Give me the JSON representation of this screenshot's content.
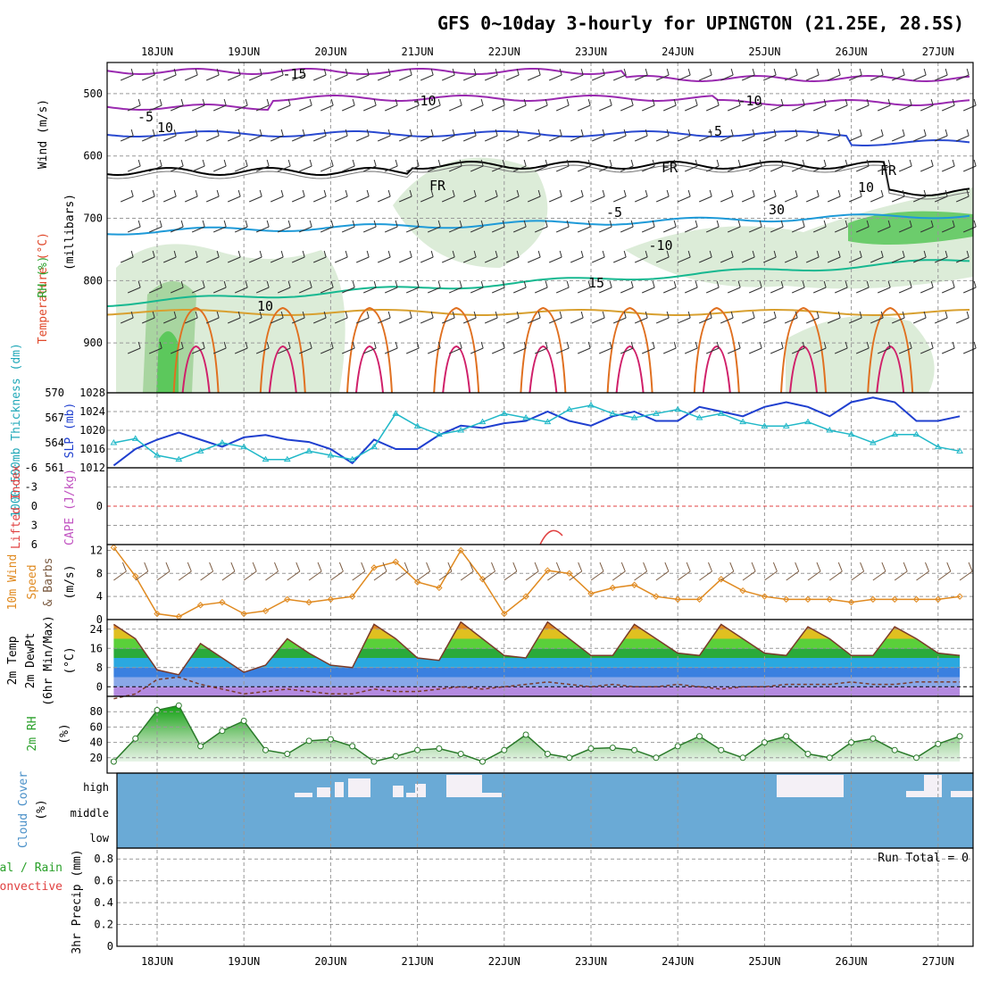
{
  "title": "GFS 0~10day 3-hourly for UPINGTON (21.25E, 28.5S)",
  "x_dates": [
    "18JUN",
    "19JUN",
    "20JUN",
    "21JUN",
    "22JUN",
    "23JUN",
    "24JUN",
    "25JUN",
    "26JUN",
    "27JUN"
  ],
  "colors": {
    "frame": "#000000",
    "grid": "#999999",
    "slp": "#1f3fcf",
    "thickness": "#20b8c8",
    "wind10m": "#e08a20",
    "rh_line": "#2a7a2a",
    "cloud_bg": "#6aaad6",
    "freezing": "#000000"
  },
  "panels": {
    "upper": {
      "labels": {
        "wind": "Wind (m/s)",
        "temp": "Temperature (°C)",
        "rh": "RH (%)",
        "axis": "(millibars)"
      },
      "pressure_ticks": [
        "500",
        "600",
        "700",
        "800",
        "900"
      ],
      "contour_labels": [
        "-15",
        "-10",
        "-10",
        "-5",
        "-5",
        "FR",
        "FR",
        "FR",
        "-5",
        "-10",
        "15",
        "10",
        "10",
        "30",
        "10"
      ]
    },
    "thickness": {
      "labels": {
        "thick": "1000-500mb Thickness (dm)",
        "slp": "SLP (mb)"
      },
      "left_ticks": [
        "570",
        "567",
        "564",
        "561"
      ],
      "right_ticks": [
        "1028",
        "1024",
        "1020",
        "1016",
        "1012"
      ]
    },
    "cape": {
      "labels": {
        "li": "Lifted Index",
        "cape": "CAPE (J/kg)"
      },
      "ticks": [
        "-6",
        "-3",
        "0",
        "3",
        "6"
      ]
    },
    "wind10m": {
      "labels": {
        "title": "10m Wind",
        "speed": "Speed",
        "barbs": "& Barbs",
        "unit": "(m/s)"
      },
      "ticks": [
        "12",
        "8",
        "4",
        "0"
      ]
    },
    "temp2m": {
      "labels": {
        "line1": "2m Temp",
        "line2": "2m DewPt",
        "line3": "(6hr Min/Max)",
        "unit": "(°C)"
      },
      "ticks": [
        "24",
        "16",
        "8",
        "0"
      ]
    },
    "rh2m": {
      "labels": {
        "title": "2m RH",
        "unit": "(%)"
      },
      "ticks": [
        "80",
        "60",
        "40",
        "20"
      ]
    },
    "cloud": {
      "labels": {
        "title": "Cloud Cover",
        "unit": "(%)"
      },
      "levels": [
        "high",
        "middle",
        "low"
      ]
    },
    "precip": {
      "labels": {
        "total": "Total / Rain",
        "conv": "Convective",
        "axis": "3hr Precip (mm)"
      },
      "ticks": [
        "0.8",
        "0.6",
        "0.4",
        "0.2",
        "0"
      ],
      "run_total": "Run Total = 0"
    }
  },
  "chart_data": [
    {
      "type": "line",
      "title": "1000-500mb Thickness (dm) / SLP (mb)",
      "x": [
        "17.5",
        "17.75",
        "18.0",
        "18.25",
        "18.5",
        "18.75",
        "19.0",
        "19.25",
        "19.5",
        "19.75",
        "20.0",
        "20.25",
        "20.5",
        "20.75",
        "21.0",
        "21.25",
        "21.5",
        "21.75",
        "22.0",
        "22.25",
        "22.5",
        "22.75",
        "23.0",
        "23.25",
        "23.5",
        "23.75",
        "24.0",
        "24.25",
        "24.5",
        "24.75",
        "25.0",
        "25.25",
        "25.5",
        "25.75",
        "26.0",
        "26.25",
        "26.5",
        "26.75",
        "27.0",
        "27.25"
      ],
      "series": [
        {
          "name": "SLP (mb)",
          "values": [
            1012.5,
            1016,
            1018,
            1019.5,
            1018,
            1016.5,
            1018.5,
            1019,
            1018,
            1017.5,
            1016,
            1013,
            1018,
            1016,
            1016,
            1019,
            1021,
            1020.5,
            1021.5,
            1022,
            1024,
            1022,
            1021,
            1023,
            1024,
            1022,
            1022,
            1025,
            1024,
            1023,
            1025,
            1026,
            1025,
            1023,
            1026,
            1027,
            1026,
            1022,
            1022,
            1023
          ]
        },
        {
          "name": "1000-500mb Thickness (dm)",
          "values": [
            564,
            564.5,
            562.5,
            562,
            563,
            564,
            563.5,
            562,
            562,
            563,
            562.5,
            562,
            563.5,
            567.5,
            566,
            565,
            565.5,
            566.5,
            567.5,
            567,
            566.5,
            568,
            568.5,
            567.5,
            567,
            567.5,
            568,
            567,
            567.5,
            566.5,
            566,
            566,
            566.5,
            565.5,
            565,
            564,
            565,
            565,
            563.5,
            563
          ]
        }
      ],
      "ylim_left": [
        561,
        570
      ],
      "ylim_right": [
        1012,
        1028
      ]
    },
    {
      "type": "line",
      "title": "10m Wind Speed (m/s)",
      "x": [
        "17.5",
        "17.75",
        "18.0",
        "18.25",
        "18.5",
        "18.75",
        "19.0",
        "19.25",
        "19.5",
        "19.75",
        "20.0",
        "20.25",
        "20.5",
        "20.75",
        "21.0",
        "21.25",
        "21.5",
        "21.75",
        "22.0",
        "22.25",
        "22.5",
        "22.75",
        "23.0",
        "23.25",
        "23.5",
        "23.75",
        "24.0",
        "24.25",
        "24.5",
        "24.75",
        "25.0",
        "25.25",
        "25.5",
        "25.75",
        "26.0",
        "26.25",
        "26.5",
        "26.75",
        "27.0",
        "27.25"
      ],
      "series": [
        {
          "name": "Speed",
          "values": [
            12.5,
            7.5,
            1,
            0.5,
            2.5,
            3,
            1,
            1.5,
            3.5,
            3,
            3.5,
            4,
            9,
            10,
            6.5,
            5.5,
            12,
            7,
            1,
            4,
            8.5,
            8,
            4.5,
            5.5,
            6,
            4,
            3.5,
            3.5,
            7,
            5,
            4,
            3.5,
            3.5,
            3.5,
            3,
            3.5,
            3.5,
            3.5,
            3.5,
            4
          ]
        }
      ],
      "ylim": [
        0,
        13
      ]
    },
    {
      "type": "area",
      "title": "2m Temp / 2m DewPt (°C)",
      "x": [
        "17.5",
        "17.75",
        "18.0",
        "18.25",
        "18.5",
        "18.75",
        "19.0",
        "19.25",
        "19.5",
        "19.75",
        "20.0",
        "20.25",
        "20.5",
        "20.75",
        "21.0",
        "21.25",
        "21.5",
        "21.75",
        "22.0",
        "22.25",
        "22.5",
        "22.75",
        "23.0",
        "23.25",
        "23.5",
        "23.75",
        "24.0",
        "24.25",
        "24.5",
        "24.75",
        "25.0",
        "25.25",
        "25.5",
        "25.75",
        "26.0",
        "26.25",
        "26.5",
        "26.75",
        "27.0",
        "27.25"
      ],
      "series": [
        {
          "name": "2m Temp",
          "values": [
            26,
            20,
            7,
            5,
            18,
            12,
            6,
            9,
            20,
            14,
            9,
            8,
            26,
            20,
            12,
            11,
            27,
            20,
            13,
            12,
            27,
            20,
            13,
            13,
            26,
            20,
            14,
            13,
            26,
            20,
            14,
            13,
            25,
            20,
            13,
            13,
            25,
            20,
            14,
            13
          ]
        },
        {
          "name": "2m DewPt",
          "values": [
            -5,
            -3,
            3,
            4,
            1,
            -1,
            -3,
            -2,
            -1,
            -2,
            -3,
            -3,
            -1,
            -2,
            -2,
            -1,
            0,
            -1,
            0,
            1,
            2,
            1,
            0,
            1,
            0,
            0,
            1,
            0,
            -1,
            0,
            0,
            1,
            1,
            1,
            2,
            1,
            1,
            2,
            2,
            2
          ]
        }
      ],
      "ylim": [
        -4,
        28
      ]
    },
    {
      "type": "area",
      "title": "2m RH (%)",
      "x": [
        "17.5",
        "17.75",
        "18.0",
        "18.25",
        "18.5",
        "18.75",
        "19.0",
        "19.25",
        "19.5",
        "19.75",
        "20.0",
        "20.25",
        "20.5",
        "20.75",
        "21.0",
        "21.25",
        "21.5",
        "21.75",
        "22.0",
        "22.25",
        "22.5",
        "22.75",
        "23.0",
        "23.25",
        "23.5",
        "23.75",
        "24.0",
        "24.25",
        "24.5",
        "24.75",
        "25.0",
        "25.25",
        "25.5",
        "25.75",
        "26.0",
        "26.25",
        "26.5",
        "26.75",
        "27.0",
        "27.25"
      ],
      "series": [
        {
          "name": "2m RH",
          "values": [
            15,
            45,
            82,
            88,
            35,
            55,
            68,
            30,
            25,
            42,
            44,
            35,
            15,
            22,
            30,
            32,
            25,
            15,
            30,
            50,
            25,
            20,
            32,
            33,
            30,
            20,
            35,
            48,
            30,
            20,
            40,
            48,
            25,
            20,
            40,
            45,
            30,
            20,
            38,
            48
          ]
        }
      ],
      "ylim": [
        0,
        100
      ]
    }
  ]
}
